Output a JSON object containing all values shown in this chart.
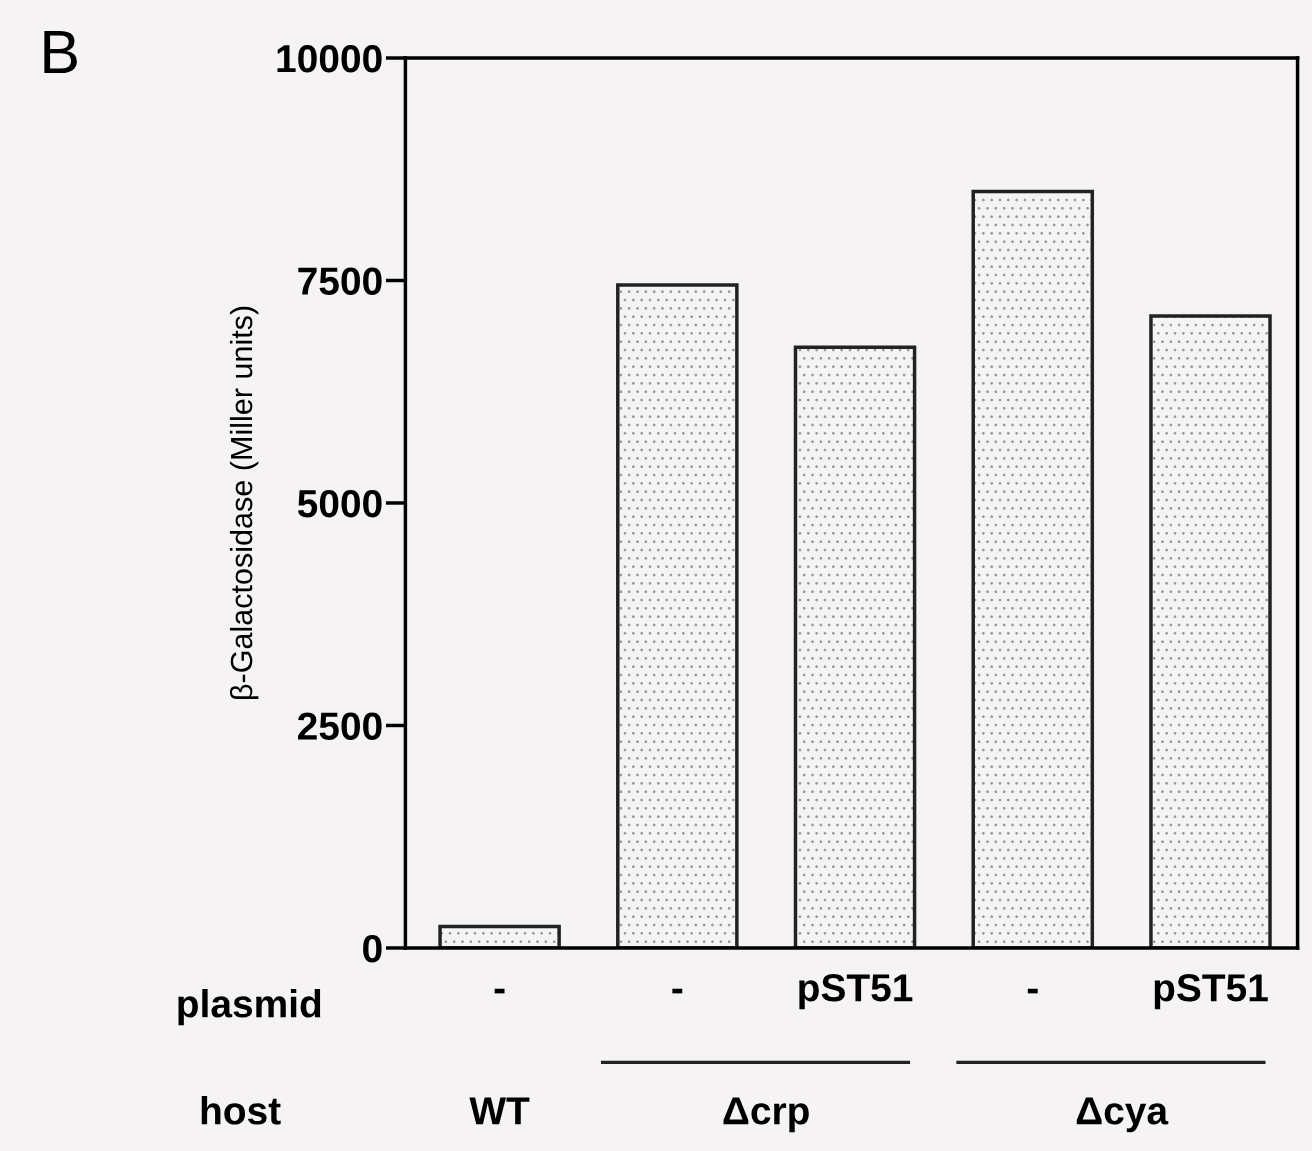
{
  "chart_data": {
    "type": "bar",
    "ylabel": "β-Galactosidase (Miller units)",
    "categories": [
      "-",
      "-",
      "pST51",
      "-",
      "pST51"
    ],
    "values": [
      240,
      7450,
      6750,
      8500,
      7100
    ],
    "color": "#222222",
    "ylim": [
      0,
      10000
    ],
    "yticks": [
      0,
      2500,
      5000,
      7500,
      10000
    ],
    "grid": false,
    "legend": false,
    "annotations": [
      "B",
      "plasmid",
      "host",
      "WT",
      "Δcrp",
      "Δcya"
    ]
  }
}
